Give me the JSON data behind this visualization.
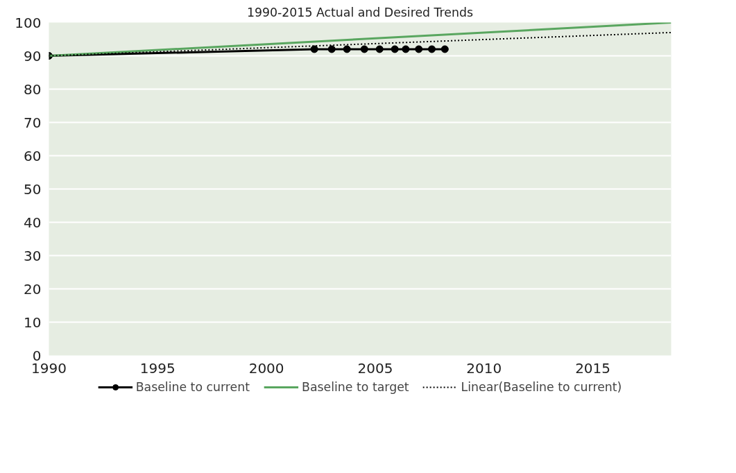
{
  "chart_data": {
    "type": "line",
    "title": "1990-2015 Actual and Desired Trends",
    "xlim": [
      1990,
      2018.6
    ],
    "xticks": [
      1990,
      1995,
      2000,
      2005,
      2010,
      2015
    ],
    "ylim": [
      0,
      100
    ],
    "yticks": [
      0,
      10,
      20,
      30,
      40,
      50,
      60,
      70,
      80,
      90,
      100
    ],
    "grid": "y",
    "legend": "bottom",
    "series": [
      {
        "name": "Baseline to current",
        "color": "#000000",
        "marker": "circle",
        "line_style": "solid",
        "x": [
          1990,
          2002.2,
          2003.0,
          2003.7,
          2004.5,
          2005.2,
          2005.9,
          2006.4,
          2007.0,
          2007.6,
          2008.2
        ],
        "values": [
          90,
          92,
          92,
          92,
          92,
          92,
          92,
          92,
          92,
          92,
          92
        ]
      },
      {
        "name": "Baseline to target",
        "color": "#59a65f",
        "marker": "none",
        "line_style": "solid",
        "x": [
          1990,
          2018.6
        ],
        "values": [
          90,
          100
        ]
      },
      {
        "name": "Linear(Baseline to current)",
        "color": "#000000",
        "marker": "none",
        "line_style": "dotted",
        "x": [
          1990,
          2018.6
        ],
        "values": [
          90,
          97
        ]
      }
    ]
  }
}
